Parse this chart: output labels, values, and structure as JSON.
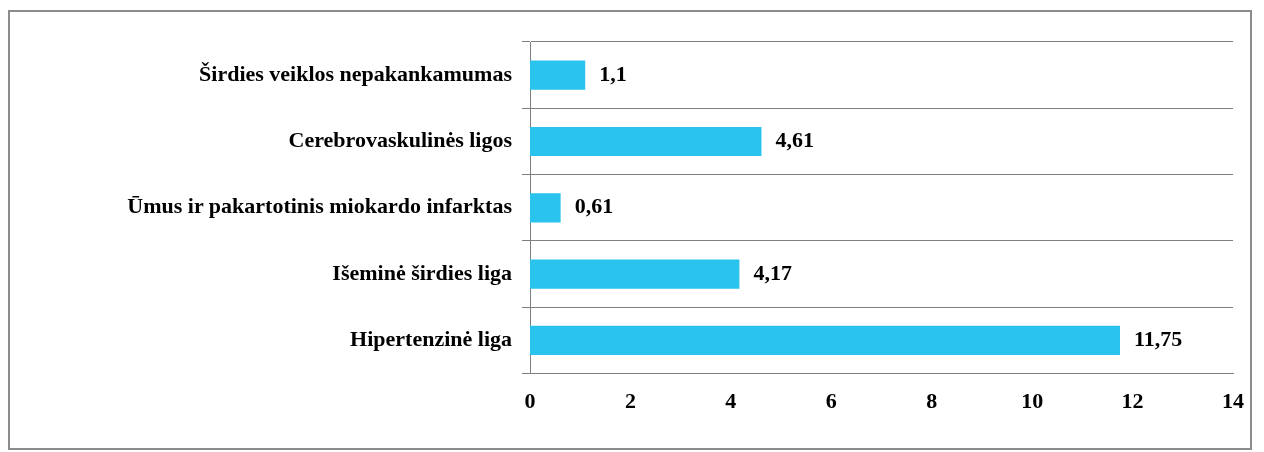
{
  "chart_data": {
    "type": "bar",
    "orientation": "horizontal",
    "categories": [
      "Širdies veiklos nepakankamumas",
      "Cerebrovaskulinės ligos",
      "Ūmus ir pakartotinis miokardo infarktas",
      "Išeminė širdies liga",
      "Hipertenzinė liga"
    ],
    "values": [
      1.1,
      4.61,
      0.61,
      4.17,
      11.75
    ],
    "value_labels": [
      "1,1",
      "4,61",
      "0,61",
      "4,17",
      "11,75"
    ],
    "color": "#29c3ee",
    "xlim": [
      0,
      14
    ],
    "xticks": [
      0,
      2,
      4,
      6,
      8,
      10,
      12,
      14
    ],
    "grid": "y",
    "legend": false
  }
}
